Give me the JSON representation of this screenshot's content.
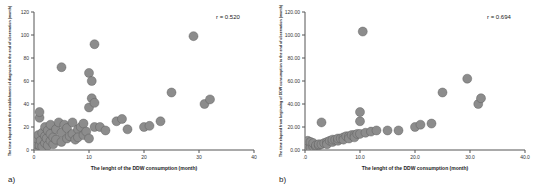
{
  "chart_data": [
    {
      "type": "scatter",
      "panel_label": "a)",
      "annotation": "r = 0.520",
      "x_label": "The lenght of the DDW consumption (month)",
      "y_label": "The time elapsed from the establishment of diagnosis to the end of observation (month)",
      "x": [
        0.2,
        0.5,
        0.5,
        0.8,
        1,
        1,
        1,
        1.2,
        1.5,
        1.5,
        2,
        2,
        2,
        2.3,
        2.5,
        2.5,
        3,
        3,
        3,
        3.5,
        3.5,
        4,
        4,
        4.5,
        5,
        5,
        5,
        5.5,
        6,
        6,
        6.5,
        7,
        7,
        7.5,
        8,
        8,
        8.5,
        9,
        9,
        9.5,
        10,
        10,
        10,
        10.5,
        10.5,
        11,
        11,
        11,
        12,
        13,
        15,
        16,
        17,
        20,
        21,
        23,
        25,
        29,
        31,
        32
      ],
      "values": [
        2,
        5,
        10,
        13,
        28,
        33,
        4,
        8,
        15,
        3,
        6,
        12,
        20,
        10,
        4,
        17,
        8,
        14,
        22,
        5,
        11,
        18,
        9,
        24,
        7,
        15,
        72,
        22,
        10,
        19,
        12,
        24,
        14,
        9,
        18,
        11,
        20,
        13,
        23,
        16,
        67,
        10,
        37,
        60,
        45,
        92,
        41,
        20,
        20,
        17,
        25,
        27,
        18,
        20,
        21,
        25,
        50,
        99,
        40,
        44
      ],
      "xlim": [
        0,
        40
      ],
      "xticks": [
        0,
        10,
        20,
        30,
        40
      ],
      "ylim": [
        0,
        120
      ],
      "yticks": [
        0,
        20,
        40,
        60,
        80,
        100,
        120
      ],
      "color": "#8c8c8c",
      "marker": "circle",
      "grid": false
    },
    {
      "type": "scatter",
      "panel_label": "b)",
      "annotation": "r = 0.694",
      "x_label": "The lenght of the DDW consumption (month)",
      "y_label": "The time elapsed from beginning of DDW consumption to the end of observation (month)",
      "x": [
        0.2,
        0.5,
        0.5,
        1,
        1,
        1.5,
        1.5,
        2,
        2,
        2.5,
        2.5,
        3,
        3,
        3.5,
        4,
        4,
        4.5,
        5,
        5,
        5.5,
        6,
        6,
        6.5,
        7,
        7,
        7.5,
        8,
        8,
        8.5,
        9,
        9,
        9.5,
        10,
        10,
        10,
        10.5,
        11,
        12,
        13,
        15,
        17,
        20,
        21,
        23,
        25,
        29.5,
        31.5,
        32
      ],
      "values": [
        1,
        1.5,
        8,
        2,
        7,
        3,
        6,
        3,
        4,
        4,
        5,
        5,
        24,
        6,
        7,
        5,
        8,
        7,
        9,
        9,
        8,
        10,
        10,
        11,
        9,
        12,
        12,
        10,
        13,
        13,
        11,
        14,
        25,
        33,
        14,
        103,
        15,
        16,
        17,
        17,
        17,
        20,
        22,
        23,
        50,
        62,
        40,
        45
      ],
      "xlim": [
        0,
        40
      ],
      "xticks": [
        {
          "value": 0,
          "label": ".0"
        },
        {
          "value": 10,
          "label": "10.0"
        },
        {
          "value": 20,
          "label": "20.0"
        },
        {
          "value": 30,
          "label": "30.0"
        },
        {
          "value": 40,
          "label": "40.0"
        }
      ],
      "ylim": [
        0,
        120
      ],
      "yticks": [
        {
          "value": 0,
          "label": "0.00"
        },
        {
          "value": 20,
          "label": "20.00"
        },
        {
          "value": 40,
          "label": "40.00"
        },
        {
          "value": 60,
          "label": "60.00"
        },
        {
          "value": 80,
          "label": "80.00"
        },
        {
          "value": 100,
          "label": "100.00"
        },
        {
          "value": 120,
          "label": "120.00"
        }
      ],
      "color": "#8c8c8c",
      "marker": "circle",
      "grid": false
    }
  ]
}
